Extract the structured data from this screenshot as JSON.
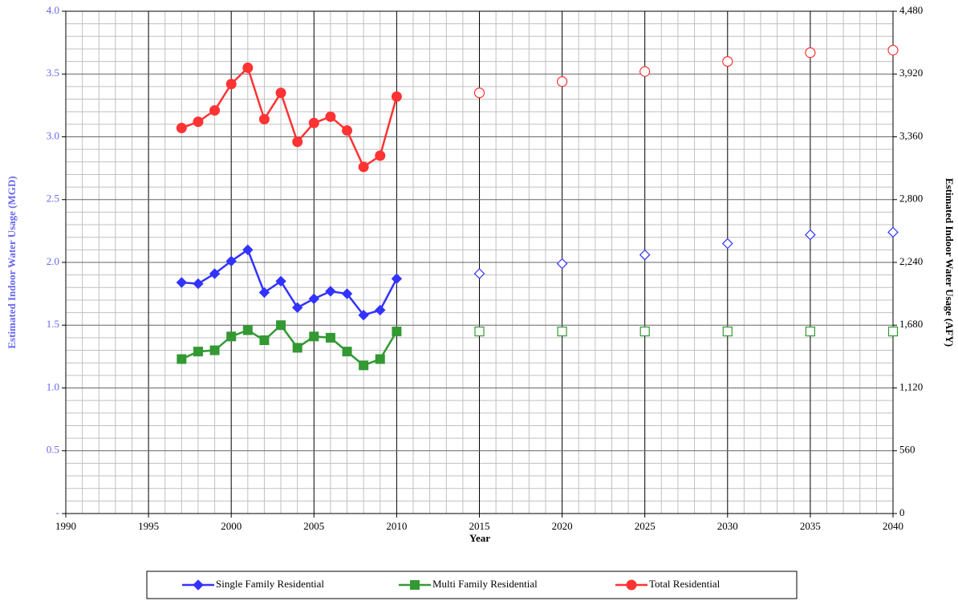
{
  "chart_data": {
    "type": "line",
    "x_label": "Year",
    "y_label": "Estimated Indoor Water Usage (MGD)",
    "y2_label": "Estimated Indoor Water Usage (AFY)",
    "x": [
      1997,
      1998,
      1999,
      2000,
      2001,
      2002,
      2003,
      2004,
      2005,
      2006,
      2007,
      2008,
      2009,
      2010
    ],
    "projection_x": [
      2015,
      2020,
      2025,
      2030,
      2035,
      2040
    ],
    "series": [
      {
        "name": "Single Family Residential",
        "color": "#3333ff",
        "marker": "diamond",
        "values": [
          1.84,
          1.83,
          1.91,
          2.01,
          2.1,
          1.76,
          1.85,
          1.64,
          1.71,
          1.77,
          1.75,
          1.58,
          1.62,
          1.87
        ],
        "projection_values": [
          1.91,
          1.99,
          2.06,
          2.15,
          2.22,
          2.24
        ]
      },
      {
        "name": "Multi Family Residential",
        "color": "#339933",
        "marker": "square",
        "values": [
          1.23,
          1.29,
          1.3,
          1.41,
          1.46,
          1.38,
          1.5,
          1.32,
          1.41,
          1.4,
          1.29,
          1.18,
          1.23,
          1.45
        ],
        "projection_values": [
          1.45,
          1.45,
          1.45,
          1.45,
          1.45,
          1.45
        ]
      },
      {
        "name": "Total Residential",
        "color": "#ff3333",
        "marker": "circle",
        "values": [
          3.07,
          3.12,
          3.21,
          3.42,
          3.55,
          3.14,
          3.35,
          2.96,
          3.11,
          3.16,
          3.05,
          2.76,
          2.85,
          3.32
        ],
        "projection_values": [
          3.35,
          3.44,
          3.52,
          3.6,
          3.67,
          3.69
        ]
      }
    ],
    "xlim": [
      1990,
      2040
    ],
    "xticks": [
      1990,
      1995,
      2000,
      2005,
      2010,
      2015,
      2020,
      2025,
      2030,
      2035,
      2040
    ],
    "ylim": [
      0,
      4
    ],
    "yticks": [
      {
        "value": 0,
        "label": "-"
      },
      0.5,
      {
        "value": 1,
        "label": "1.0"
      },
      1.5,
      {
        "value": 2,
        "label": "2.0"
      },
      2.5,
      {
        "value": 3,
        "label": "3.0"
      },
      3.5,
      {
        "value": 4,
        "label": "4.0"
      }
    ],
    "y2lim": [
      0,
      4480
    ],
    "y2ticks": [
      0,
      560,
      {
        "value": 1120,
        "label": "1,120"
      },
      {
        "value": 1680,
        "label": "1,680"
      },
      {
        "value": 2240,
        "label": "2,240"
      },
      {
        "value": 2800,
        "label": "2,800"
      },
      {
        "value": 3360,
        "label": "3,360"
      },
      {
        "value": 3920,
        "label": "3,920"
      },
      {
        "value": 4480,
        "label": "4,480"
      }
    ],
    "grid": true,
    "minor_grid": true,
    "legend": "bottom"
  }
}
